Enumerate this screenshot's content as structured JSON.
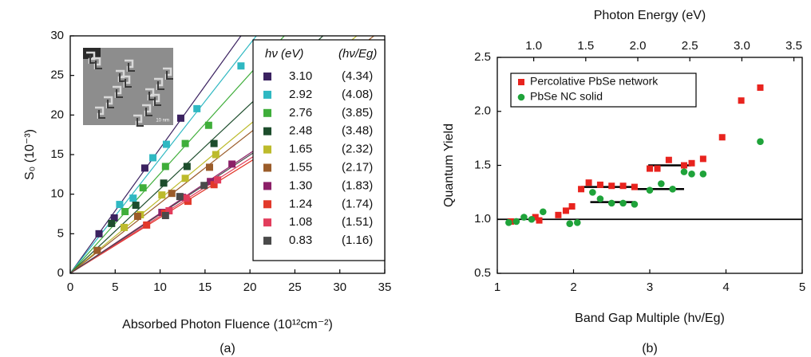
{
  "chart_data": [
    {
      "type": "scatter",
      "panel": "(a)",
      "xlabel": "Absorbed Photon Fluence (10¹²cm⁻²)",
      "ylabel": "S₀ (10⁻³)",
      "xlim": [
        0,
        35
      ],
      "ylim": [
        0,
        30
      ],
      "xticks": [
        0,
        5,
        10,
        15,
        20,
        25,
        30,
        35
      ],
      "yticks": [
        0,
        5,
        10,
        15,
        20,
        25,
        30
      ],
      "inset_label": "10 nm",
      "legend_header": [
        "hν (eV)",
        "(hν/Eg)"
      ],
      "fit_lines": true,
      "series": [
        {
          "name": "3.10",
          "ratio": "(4.34)",
          "color": "#3b2260",
          "x": [
            3.2,
            4.9,
            8.3,
            12.3
          ],
          "values": [
            5.0,
            7.0,
            13.3,
            19.6
          ]
        },
        {
          "name": "2.92",
          "ratio": "(4.08)",
          "color": "#2fb8c2",
          "x": [
            5.5,
            7.0,
            9.2,
            10.7,
            14.1,
            19.0
          ],
          "values": [
            8.7,
            9.5,
            14.6,
            16.3,
            20.8,
            26.2
          ]
        },
        {
          "name": "2.76",
          "ratio": "(3.85)",
          "color": "#3fae3a",
          "x": [
            6.1,
            8.1,
            10.6,
            12.8,
            15.4
          ],
          "values": [
            7.8,
            10.8,
            13.5,
            16.4,
            18.7
          ]
        },
        {
          "name": "2.48",
          "ratio": "(3.48)",
          "color": "#1d4d2c",
          "x": [
            4.6,
            7.3,
            10.4,
            13.0,
            16.0
          ],
          "values": [
            6.3,
            8.6,
            11.4,
            13.5,
            16.4
          ]
        },
        {
          "name": "1.65",
          "ratio": "(2.32)",
          "color": "#bdbb2c",
          "x": [
            6.0,
            7.8,
            10.2,
            12.8,
            16.2
          ],
          "values": [
            5.8,
            7.4,
            9.9,
            12.0,
            15.0
          ]
        },
        {
          "name": "1.55",
          "ratio": "(2.17)",
          "color": "#9b5c2a",
          "x": [
            3.0,
            7.5,
            11.3,
            15.5
          ],
          "values": [
            2.9,
            7.2,
            10.1,
            13.4
          ]
        },
        {
          "name": "1.30",
          "ratio": "(1.83)",
          "color": "#8c2068",
          "x": [
            10.2,
            12.5,
            15.6,
            18.0
          ],
          "values": [
            7.7,
            9.6,
            11.6,
            13.8
          ]
        },
        {
          "name": "1.24",
          "ratio": "(1.74)",
          "color": "#e2392b",
          "x": [
            8.5,
            10.5,
            13.1,
            16.0
          ],
          "values": [
            6.1,
            7.6,
            9.1,
            11.2
          ]
        },
        {
          "name": "1.08",
          "ratio": "(1.51)",
          "color": "#e23d5c",
          "x": [
            11.0,
            12.9,
            16.4
          ],
          "values": [
            7.9,
            9.5,
            11.8
          ]
        },
        {
          "name": "0.83",
          "ratio": "(1.16)",
          "color": "#4a4a4a",
          "x": [
            10.6,
            12.2,
            14.9
          ],
          "values": [
            7.3,
            9.7,
            11.1
          ]
        }
      ]
    },
    {
      "type": "scatter",
      "panel": "(b)",
      "xlabel": "Band Gap Multiple (hν/Eg)",
      "ylabel": "Quantum Yield",
      "x2label": "Photon Energy (eV)",
      "xlim": [
        1,
        5
      ],
      "ylim": [
        0.5,
        2.5
      ],
      "x2lim": [
        0.65,
        3.58
      ],
      "xticks": [
        1,
        2,
        3,
        4,
        5
      ],
      "yticks": [
        0.5,
        {
          "value": 1,
          "label": "1.0"
        },
        1.5,
        {
          "value": 2,
          "label": "2.0"
        },
        2.5
      ],
      "x2ticks": [
        {
          "value": 1,
          "label": "1.0"
        },
        1.5,
        {
          "value": 2,
          "label": "2.0"
        },
        2.5,
        {
          "value": 3,
          "label": "3.0"
        },
        3.5
      ],
      "reference_lines": [
        1.0
      ],
      "steps": [
        {
          "x": [
            2.1,
            2.81
          ],
          "y": 1.3
        },
        {
          "x": [
            2.22,
            2.81
          ],
          "y": 1.16
        },
        {
          "x": [
            2.98,
            3.54
          ],
          "y": 1.5
        },
        {
          "x": [
            2.84,
            3.45
          ],
          "y": 1.28
        }
      ],
      "legend": "upper left",
      "series": [
        {
          "name": "Percolative PbSe network",
          "marker": "square",
          "color": "#e8231e",
          "x": [
            1.18,
            1.5,
            1.55,
            1.8,
            1.9,
            1.98,
            2.1,
            2.2,
            2.35,
            2.5,
            2.65,
            2.8,
            3.0,
            3.1,
            3.25,
            3.45,
            3.55,
            3.7,
            3.95,
            4.2,
            4.45
          ],
          "values": [
            0.98,
            1.02,
            0.99,
            1.04,
            1.08,
            1.12,
            1.28,
            1.34,
            1.32,
            1.31,
            1.31,
            1.3,
            1.47,
            1.47,
            1.55,
            1.5,
            1.52,
            1.56,
            1.76,
            2.1,
            2.22
          ]
        },
        {
          "name": "PbSe NC solid",
          "marker": "circle",
          "color": "#1fa33a",
          "x": [
            1.15,
            1.25,
            1.35,
            1.45,
            1.6,
            1.95,
            2.05,
            2.25,
            2.35,
            2.5,
            2.65,
            2.8,
            3.0,
            3.15,
            3.3,
            3.45,
            3.55,
            3.7,
            4.45
          ],
          "values": [
            0.97,
            0.98,
            1.02,
            1.0,
            1.07,
            0.96,
            0.97,
            1.25,
            1.19,
            1.15,
            1.15,
            1.14,
            1.27,
            1.33,
            1.28,
            1.44,
            1.42,
            1.42,
            1.72
          ]
        }
      ]
    }
  ]
}
